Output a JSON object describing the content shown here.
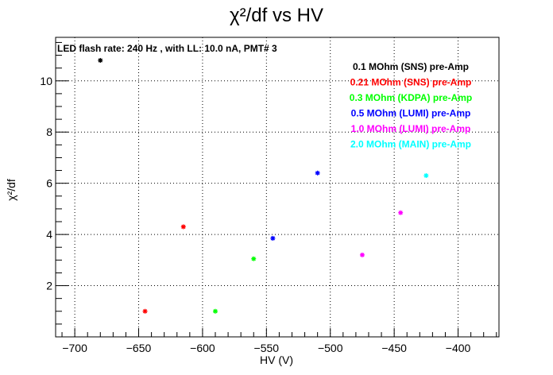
{
  "chart_data": {
    "type": "scatter",
    "title": "χ²/df vs HV",
    "xlabel": "HV (V)",
    "ylabel": "χ²/df",
    "xlim": [
      -715,
      -368
    ],
    "ylim": [
      0,
      11.7
    ],
    "x_ticks": [
      -700,
      -650,
      -600,
      -550,
      -500,
      -450,
      -400
    ],
    "x_tick_labels": [
      "−700",
      "−650",
      "−600",
      "−550",
      "−500",
      "−450",
      "−400"
    ],
    "y_ticks": [
      2,
      4,
      6,
      8,
      10
    ],
    "y_tick_labels": [
      "2",
      "4",
      "6",
      "8",
      "10"
    ],
    "grid": true,
    "annotation": "LED flash rate: 240 Hz , with LL: 10.0 nA, PMT# 3",
    "legend_placement": "top-right",
    "series": [
      {
        "name": "0.1 MOhm (SNS) pre-Amp",
        "color": "#000000",
        "x": [
          -680
        ],
        "y": [
          10.8
        ]
      },
      {
        "name": "0.21 MOhm (SNS) pre-Amp",
        "color": "#ff0000",
        "x": [
          -645,
          -615
        ],
        "y": [
          1.0,
          4.3
        ]
      },
      {
        "name": "0.3 MOhm (KDPA) pre-Amp",
        "color": "#00ff00",
        "x": [
          -590,
          -560
        ],
        "y": [
          1.0,
          3.05
        ]
      },
      {
        "name": "0.5 MOhm (LUMI) pre-Amp",
        "color": "#0000ff",
        "x": [
          -545,
          -510
        ],
        "y": [
          3.85,
          6.4
        ]
      },
      {
        "name": "1.0 MOhm (LUMI) pre-Amp",
        "color": "#ff00ff",
        "x": [
          -475,
          -445
        ],
        "y": [
          3.2,
          4.85
        ]
      },
      {
        "name": "2.0 MOhm (MAIN) pre-Amp",
        "color": "#00ffff",
        "x": [
          -425
        ],
        "y": [
          6.3
        ]
      }
    ]
  }
}
